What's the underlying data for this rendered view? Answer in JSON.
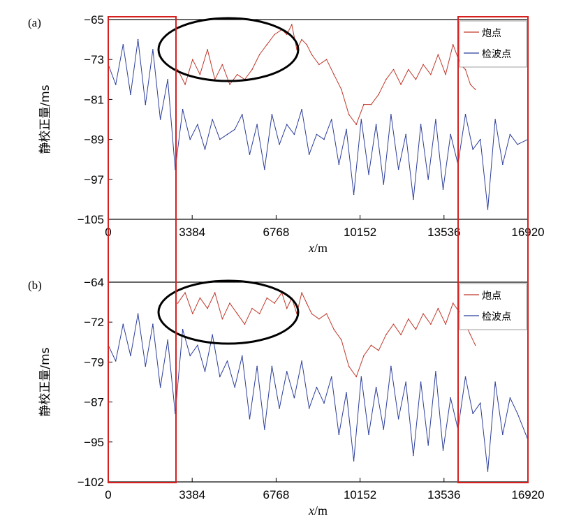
{
  "chart_data": [
    {
      "panel": "(a)",
      "type": "line",
      "ylabel": "静校正量/ms",
      "xlabel": "x/m",
      "xlim": [
        0,
        16920
      ],
      "ylim": [
        -105,
        -65
      ],
      "xticks": [
        "0",
        "3384",
        "6768",
        "10152",
        "13536",
        "16920"
      ],
      "yticks": [
        "-65",
        "-73",
        "-81",
        "-89",
        "-97",
        "-105"
      ],
      "legend_position": "top-right",
      "series": [
        {
          "name": "炮点",
          "color": "#c0392b",
          "x": [
            2800,
            3100,
            3400,
            3700,
            4000,
            4300,
            4600,
            4900,
            5200,
            5500,
            5800,
            6100,
            6400,
            6700,
            7000,
            7200,
            7400,
            7600,
            7800,
            8000,
            8200,
            8500,
            8800,
            9100,
            9400,
            9700,
            10000,
            10300,
            10600,
            10900,
            11200,
            11500,
            11800,
            12100,
            12400,
            12700,
            13000,
            13300,
            13600,
            13900,
            14200,
            14400,
            14600,
            14800
          ],
          "values": [
            -75,
            -78,
            -73,
            -76,
            -71,
            -77,
            -74,
            -78,
            -76,
            -77,
            -75,
            -72,
            -70,
            -68,
            -67,
            -68,
            -66,
            -71,
            -69,
            -70,
            -72,
            -74,
            -73,
            -76,
            -79,
            -84,
            -86,
            -82,
            -82,
            -80,
            -77,
            -75,
            -78,
            -75,
            -77,
            -74,
            -76,
            -72,
            -76,
            -70,
            -74,
            -75,
            -78,
            -79
          ]
        },
        {
          "name": "检波点",
          "color": "#2c3e9a",
          "x": [
            0,
            300,
            600,
            900,
            1200,
            1500,
            1800,
            2100,
            2400,
            2700,
            3000,
            3300,
            3600,
            3900,
            4200,
            4500,
            4800,
            5100,
            5400,
            5700,
            6000,
            6300,
            6600,
            6900,
            7200,
            7500,
            7800,
            8100,
            8400,
            8700,
            9000,
            9300,
            9600,
            9900,
            10200,
            10500,
            10800,
            11100,
            11400,
            11700,
            12000,
            12300,
            12600,
            12900,
            13200,
            13500,
            13800,
            14100,
            14400,
            14700,
            15000,
            15300,
            15600,
            15900,
            16200,
            16500,
            16920
          ],
          "values": [
            -74,
            -78,
            -70,
            -80,
            -69,
            -82,
            -71,
            -85,
            -77,
            -95,
            -83,
            -89,
            -86,
            -91,
            -85,
            -89,
            -88,
            -87,
            -84,
            -92,
            -86,
            -95,
            -84,
            -90,
            -86,
            -88,
            -83,
            -92,
            -88,
            -89,
            -85,
            -94,
            -87,
            -100,
            -85,
            -96,
            -86,
            -98,
            -84,
            -95,
            -88,
            -101,
            -86,
            -97,
            -85,
            -99,
            -88,
            -94,
            -84,
            -91,
            -89,
            -103,
            -85,
            -94,
            -88,
            -90,
            -89
          ]
        }
      ],
      "annotations": [
        "highlight boxes on x 0–2900 and x 14800–16920",
        "ellipse over 炮点 curve near x 2200–7600"
      ]
    },
    {
      "panel": "(b)",
      "type": "line",
      "ylabel": "静校正量/ms",
      "xlabel": "x/m",
      "xlim": [
        0,
        16920
      ],
      "ylim": [
        -102,
        -64
      ],
      "xticks": [
        "0",
        "3384",
        "6768",
        "10152",
        "13536",
        "16920"
      ],
      "yticks": [
        "-64",
        "-72",
        "-79",
        "-87",
        "-95",
        "-102"
      ],
      "legend_position": "top-right",
      "series": [
        {
          "name": "炮点",
          "color": "#c0392b",
          "x": [
            2800,
            3100,
            3400,
            3700,
            4000,
            4300,
            4600,
            4900,
            5200,
            5500,
            5800,
            6100,
            6400,
            6700,
            7000,
            7200,
            7400,
            7600,
            7800,
            8000,
            8200,
            8500,
            8800,
            9100,
            9400,
            9700,
            10000,
            10300,
            10600,
            10900,
            11200,
            11500,
            11800,
            12100,
            12400,
            12700,
            13000,
            13300,
            13600,
            13900,
            14200,
            14400,
            14600,
            14800
          ],
          "values": [
            -68,
            -66,
            -70,
            -67,
            -69,
            -66,
            -71,
            -68,
            -70,
            -72,
            -69,
            -70,
            -67,
            -68,
            -66,
            -69,
            -67,
            -70,
            -66,
            -68,
            -70,
            -71,
            -70,
            -73,
            -75,
            -80,
            -82,
            -78,
            -76,
            -77,
            -74,
            -72,
            -74,
            -71,
            -73,
            -70,
            -72,
            -69,
            -72,
            -68,
            -70,
            -72,
            -74,
            -76
          ]
        },
        {
          "name": "检波点",
          "color": "#2c3e9a",
          "x": [
            0,
            300,
            600,
            900,
            1200,
            1500,
            1800,
            2100,
            2400,
            2700,
            3000,
            3300,
            3600,
            3900,
            4200,
            4500,
            4800,
            5100,
            5400,
            5700,
            6000,
            6300,
            6600,
            6900,
            7200,
            7500,
            7800,
            8100,
            8400,
            8700,
            9000,
            9300,
            9600,
            9900,
            10200,
            10500,
            10800,
            11100,
            11400,
            11700,
            12000,
            12300,
            12600,
            12900,
            13200,
            13500,
            13800,
            14100,
            14400,
            14700,
            15000,
            15300,
            15600,
            15900,
            16200,
            16500,
            16920
          ],
          "values": [
            -76,
            -79,
            -72,
            -78,
            -70,
            -80,
            -72,
            -84,
            -75,
            -89,
            -73,
            -78,
            -76,
            -81,
            -74,
            -82,
            -79,
            -84,
            -78,
            -90,
            -80,
            -92,
            -80,
            -88,
            -81,
            -86,
            -79,
            -88,
            -84,
            -87,
            -82,
            -93,
            -85,
            -98,
            -82,
            -93,
            -84,
            -92,
            -80,
            -90,
            -83,
            -97,
            -83,
            -95,
            -81,
            -96,
            -86,
            -92,
            -82,
            -89,
            -87,
            -100,
            -83,
            -93,
            -86,
            -89,
            -94
          ]
        }
      ],
      "annotations": [
        "highlight boxes on x 0–2900 and x 14800–16920",
        "ellipse over 炮点 curve near x 2200–7600"
      ]
    }
  ]
}
